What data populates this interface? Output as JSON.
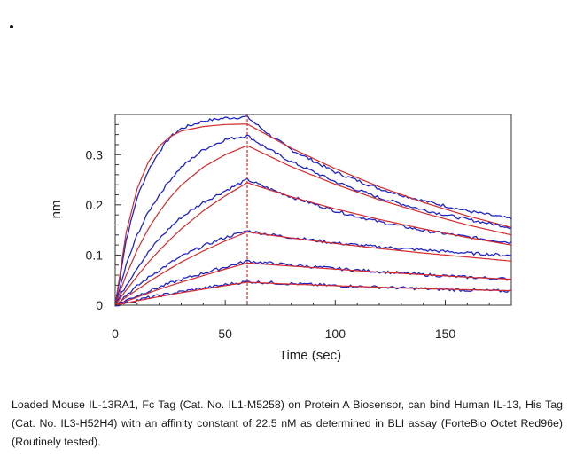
{
  "chart_data": {
    "type": "line",
    "title": "",
    "xlabel": "Time (sec)",
    "ylabel": "nm",
    "xlim": [
      0,
      180
    ],
    "ylim": [
      0,
      0.38
    ],
    "xticks": [
      0,
      50,
      100,
      150
    ],
    "yticks": [
      0,
      0.1,
      0.2,
      0.3
    ],
    "xtick_labels": [
      "0",
      "50",
      "100",
      "150"
    ],
    "ytick_labels": [
      "0",
      "0.1",
      "0.2",
      "0.3"
    ],
    "grid": false,
    "legend": "none",
    "colors": {
      "measured": "#1f23c8",
      "fit": "#d42a2a",
      "marker": "#d42a2a",
      "axis": "#333333"
    },
    "association_end_x": 60,
    "curves": [
      {
        "measured": {
          "t": [
            0,
            5,
            10,
            15,
            20,
            25,
            30,
            40,
            50,
            60,
            70,
            80,
            100,
            120,
            140,
            160,
            180
          ],
          "y": [
            0.0,
            0.13,
            0.215,
            0.268,
            0.306,
            0.335,
            0.352,
            0.367,
            0.373,
            0.375,
            0.34,
            0.31,
            0.265,
            0.232,
            0.208,
            0.188,
            0.172
          ]
        },
        "fit": {
          "t": [
            0,
            5,
            10,
            15,
            20,
            25,
            30,
            40,
            50,
            60,
            70,
            80,
            100,
            120,
            140,
            160,
            180
          ],
          "y": [
            0.0,
            0.145,
            0.232,
            0.285,
            0.317,
            0.336,
            0.347,
            0.356,
            0.36,
            0.361,
            0.337,
            0.313,
            0.272,
            0.236,
            0.205,
            0.178,
            0.155
          ]
        }
      },
      {
        "measured": {
          "t": [
            0,
            5,
            10,
            15,
            20,
            25,
            30,
            40,
            50,
            60,
            70,
            80,
            100,
            120,
            140,
            160,
            180
          ],
          "y": [
            0.0,
            0.08,
            0.14,
            0.185,
            0.22,
            0.25,
            0.275,
            0.31,
            0.33,
            0.338,
            0.31,
            0.286,
            0.246,
            0.214,
            0.19,
            0.171,
            0.155
          ]
        },
        "fit": {
          "t": [
            0,
            5,
            10,
            15,
            20,
            25,
            30,
            40,
            50,
            60,
            70,
            80,
            100,
            120,
            140,
            160,
            180
          ],
          "y": [
            0.0,
            0.06,
            0.11,
            0.152,
            0.186,
            0.215,
            0.239,
            0.275,
            0.3,
            0.318,
            0.297,
            0.276,
            0.241,
            0.21,
            0.184,
            0.16,
            0.14
          ]
        }
      },
      {
        "measured": {
          "t": [
            0,
            5,
            10,
            15,
            20,
            25,
            30,
            40,
            50,
            60,
            70,
            80,
            100,
            120,
            140,
            160,
            180
          ],
          "y": [
            0.0,
            0.04,
            0.075,
            0.105,
            0.132,
            0.155,
            0.175,
            0.205,
            0.228,
            0.25,
            0.232,
            0.216,
            0.188,
            0.166,
            0.149,
            0.136,
            0.125
          ]
        },
        "fit": {
          "t": [
            0,
            5,
            10,
            15,
            20,
            25,
            30,
            40,
            50,
            60,
            70,
            80,
            100,
            120,
            140,
            160,
            180
          ],
          "y": [
            0.0,
            0.03,
            0.058,
            0.085,
            0.109,
            0.131,
            0.152,
            0.188,
            0.218,
            0.244,
            0.23,
            0.216,
            0.192,
            0.171,
            0.152,
            0.135,
            0.12
          ]
        }
      },
      {
        "measured": {
          "t": [
            0,
            5,
            10,
            15,
            20,
            25,
            30,
            40,
            50,
            60,
            70,
            80,
            100,
            120,
            140,
            160,
            180
          ],
          "y": [
            0.0,
            0.02,
            0.038,
            0.055,
            0.07,
            0.084,
            0.097,
            0.118,
            0.135,
            0.148,
            0.141,
            0.135,
            0.124,
            0.116,
            0.11,
            0.104,
            0.099
          ]
        },
        "fit": {
          "t": [
            0,
            5,
            10,
            15,
            20,
            25,
            30,
            40,
            50,
            60,
            70,
            80,
            100,
            120,
            140,
            160,
            180
          ],
          "y": [
            0.0,
            0.016,
            0.031,
            0.046,
            0.06,
            0.073,
            0.086,
            0.108,
            0.128,
            0.146,
            0.14,
            0.134,
            0.123,
            0.113,
            0.104,
            0.096,
            0.088
          ]
        }
      },
      {
        "measured": {
          "t": [
            0,
            5,
            10,
            15,
            20,
            25,
            30,
            40,
            50,
            60,
            70,
            80,
            100,
            120,
            140,
            160,
            180
          ],
          "y": [
            0.0,
            0.01,
            0.019,
            0.028,
            0.036,
            0.044,
            0.051,
            0.064,
            0.076,
            0.088,
            0.084,
            0.08,
            0.073,
            0.067,
            0.061,
            0.056,
            0.052
          ]
        },
        "fit": {
          "t": [
            0,
            5,
            10,
            15,
            20,
            25,
            30,
            40,
            50,
            60,
            70,
            80,
            100,
            120,
            140,
            160,
            180
          ],
          "y": [
            0.0,
            0.008,
            0.016,
            0.024,
            0.032,
            0.039,
            0.046,
            0.059,
            0.072,
            0.084,
            0.081,
            0.078,
            0.072,
            0.066,
            0.061,
            0.056,
            0.052
          ]
        }
      },
      {
        "measured": {
          "t": [
            0,
            5,
            10,
            15,
            20,
            25,
            30,
            40,
            50,
            60,
            70,
            80,
            100,
            120,
            140,
            160,
            180
          ],
          "y": [
            0.0,
            0.005,
            0.01,
            0.015,
            0.019,
            0.023,
            0.027,
            0.034,
            0.041,
            0.047,
            0.045,
            0.043,
            0.039,
            0.036,
            0.033,
            0.03,
            0.028
          ]
        },
        "fit": {
          "t": [
            0,
            5,
            10,
            15,
            20,
            25,
            30,
            40,
            50,
            60,
            70,
            80,
            100,
            120,
            140,
            160,
            180
          ],
          "y": [
            0.0,
            0.004,
            0.009,
            0.013,
            0.017,
            0.021,
            0.025,
            0.032,
            0.039,
            0.046,
            0.044,
            0.042,
            0.039,
            0.036,
            0.033,
            0.031,
            0.029
          ]
        }
      }
    ]
  },
  "caption": "Loaded Mouse IL-13RA1, Fc Tag (Cat. No. IL1-M5258) on Protein A Biosensor, can bind Human IL-13, His Tag (Cat. No. IL3-H52H4) with an affinity constant of 22.5 nM as determined in BLI assay (ForteBio Octet Red96e) (Routinely tested)."
}
